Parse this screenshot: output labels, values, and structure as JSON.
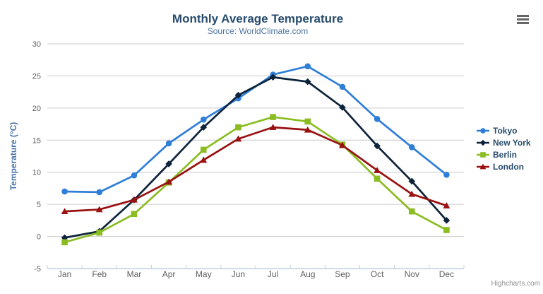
{
  "chart_data": {
    "type": "line",
    "title": "Monthly Average Temperature",
    "subtitle": "Source: WorldClimate.com",
    "categories": [
      "Jan",
      "Feb",
      "Mar",
      "Apr",
      "May",
      "Jun",
      "Jul",
      "Aug",
      "Sep",
      "Oct",
      "Nov",
      "Dec"
    ],
    "series": [
      {
        "name": "Tokyo",
        "color": "#2f7ed8",
        "marker": "circle",
        "values": [
          7.0,
          6.9,
          9.5,
          14.5,
          18.2,
          21.5,
          25.2,
          26.5,
          23.3,
          18.3,
          13.9,
          9.6
        ]
      },
      {
        "name": "New York",
        "color": "#0d233a",
        "marker": "diamond",
        "values": [
          -0.2,
          0.8,
          5.7,
          11.3,
          17.0,
          22.0,
          24.8,
          24.1,
          20.1,
          14.1,
          8.6,
          2.5
        ]
      },
      {
        "name": "Berlin",
        "color": "#8bbc21",
        "marker": "square",
        "values": [
          -0.9,
          0.6,
          3.5,
          8.4,
          13.5,
          17.0,
          18.6,
          17.9,
          14.3,
          9.0,
          3.9,
          1.0
        ]
      },
      {
        "name": "London",
        "color": "#991111",
        "marker": "triangle",
        "values": [
          3.9,
          4.2,
          5.7,
          8.5,
          11.9,
          15.2,
          17.0,
          16.6,
          14.2,
          10.3,
          6.6,
          4.8
        ]
      }
    ],
    "xlabel": "",
    "ylabel": "Temperature (°C)",
    "ylim": [
      -5,
      30
    ],
    "yticks": [
      -5,
      0,
      5,
      10,
      15,
      20,
      25,
      30
    ],
    "grid": true,
    "legend_position": "right"
  },
  "colors": {
    "title_text": "#274b6d",
    "subtitle_text": "#4d759e",
    "axis_label": "#606060",
    "y_axis_title": "#4572a7",
    "gridline": "#c9c9c9",
    "axis_line": "#c0d0e0",
    "legend_text": "#274b6d",
    "credits_text": "#909090",
    "menu_icon": "#666666"
  },
  "credits": {
    "label": "Highcharts.com"
  },
  "export_menu": {
    "icon": "hamburger-icon"
  }
}
